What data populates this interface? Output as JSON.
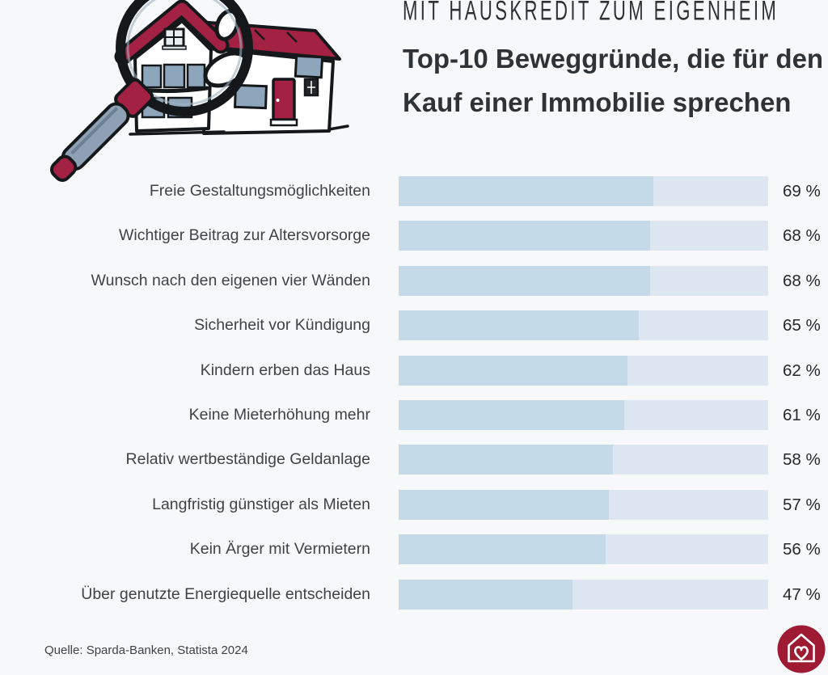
{
  "header": {
    "eyebrow": "MIT HAUSKREDIT ZUM EIGENHEIM",
    "title_line1": "Top-10 Beweggründe, die für den",
    "title_line2": "Kauf einer Immobilie sprechen"
  },
  "chart_data": {
    "type": "bar",
    "orientation": "horizontal",
    "title": "Top-10 Beweggründe, die für den Kauf einer Immobilie sprechen",
    "categories": [
      "Freie Gestaltungsmöglichkeiten",
      "Wichtiger Beitrag zur Altersvorsorge",
      "Wunsch nach den eigenen vier Wänden",
      "Sicherheit vor Kündigung",
      "Kindern erben das Haus",
      "Keine Mieterhöhung mehr",
      "Relativ wertbeständige Geldanlage",
      "Langfristig günstiger als Mieten",
      "Kein Ärger mit Vermietern",
      "Über genutzte Energiequelle entscheiden"
    ],
    "values": [
      69,
      68,
      68,
      65,
      62,
      61,
      58,
      57,
      56,
      47
    ],
    "unit": "%",
    "value_suffix": " %",
    "xlim": [
      0,
      100
    ],
    "grid": false,
    "legend": "none",
    "value_labels_position": "right"
  },
  "footer": {
    "source": "Quelle: Sparda-Banken, Statista 2024"
  },
  "colors": {
    "background": "#f7f8fa",
    "bar_fill": "#c5dae8",
    "bar_track": "#dde6f1",
    "accent_red": "#a32142",
    "logo_red": "#9e1b33",
    "title_text": "#2e3338",
    "label_text": "#3f4348"
  },
  "icons": {
    "illustration": "magnifying-glass-over-house-icon",
    "logo": "house-with-heart-icon"
  }
}
